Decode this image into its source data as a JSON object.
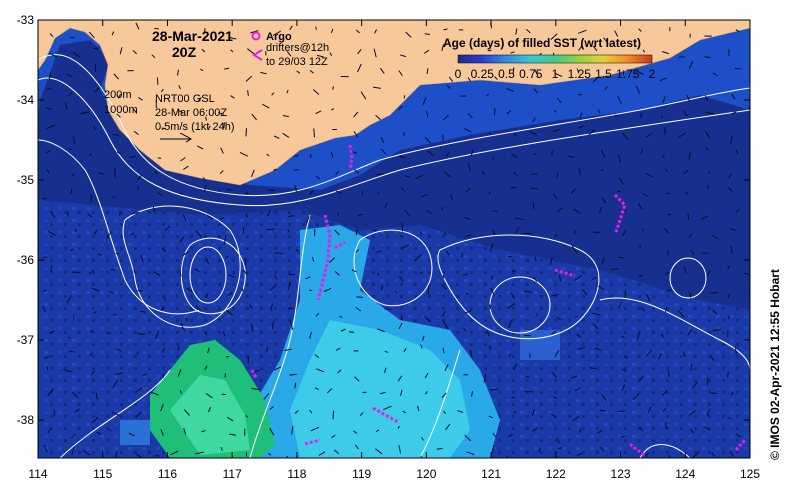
{
  "map": {
    "date_line1": "28-Mar-2021",
    "date_line2": "20Z",
    "argo_label": "Argo",
    "drifters_line1": "drifters@12h",
    "drifters_line2": "to 29/03 12Z",
    "depth_200": "200m",
    "depth_1000": "1000m",
    "nrt_line1": "NRT00 GSL",
    "nrt_line2": "28-Mar 06:00Z",
    "nrt_line3": "0.5m/s (1kt 24h)",
    "credit": "© IMOS 02-Apr-2021 12:55 Hobart",
    "colors": {
      "land": "#f7c99a",
      "ocean_deep": "#17308f",
      "ocean_mid": "#1d4fc8",
      "filled_light": "#2aa9e8",
      "filled_cyan": "#3ccbe8",
      "filled_green": "#1fbf7a",
      "drifter": "#e21ee8",
      "contour": "#ffffff"
    }
  },
  "legend": {
    "title": "Age (days) of filled SST (wrt latest)",
    "ticks": [
      "0",
      "0.25",
      "0.5",
      "0.75",
      "1",
      "1.25",
      "1.5",
      "1.75",
      "2"
    ],
    "colormap": [
      "#1a2a8c",
      "#2a3fd0",
      "#2d8ee6",
      "#35c7d6",
      "#40c98a",
      "#8fd640",
      "#e4d23a",
      "#f08a2a",
      "#c43a1e"
    ]
  },
  "axes": {
    "x_ticks": [
      "114",
      "115",
      "116",
      "117",
      "118",
      "119",
      "120",
      "121",
      "122",
      "123",
      "124",
      "125"
    ],
    "y_ticks": [
      "-33",
      "-34",
      "-35",
      "-36",
      "-37",
      "-38"
    ]
  }
}
